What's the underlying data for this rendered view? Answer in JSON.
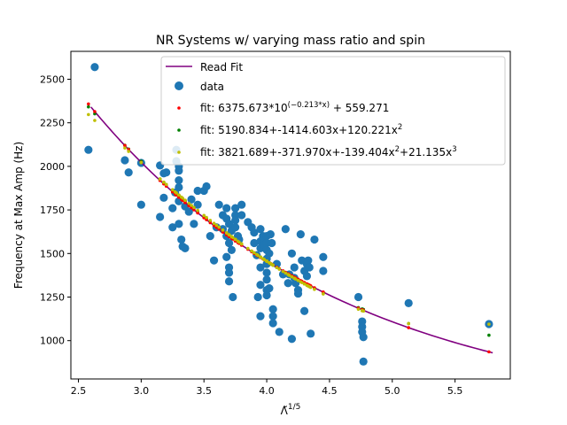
{
  "chart_data": {
    "type": "scatter",
    "title": "NR Systems w/ varying mass ratio and spin",
    "xlabel": "Λ̃",
    "xlabel_sup": "1/5",
    "ylabel": "Frequency at Max Amp (Hz)",
    "xlim": [
      2.44,
      5.94
    ],
    "ylim": [
      780,
      2660
    ],
    "xticks": [
      2.5,
      3.0,
      3.5,
      4.0,
      4.5,
      5.0,
      5.5
    ],
    "xtick_labels": [
      "2.5",
      "3.0",
      "3.5",
      "4.0",
      "4.5",
      "5.0",
      "5.5"
    ],
    "yticks": [
      1000,
      1250,
      1500,
      1750,
      2000,
      2250,
      2500
    ],
    "ytick_labels": [
      "1000",
      "1250",
      "1500",
      "1750",
      "2000",
      "2250",
      "2500"
    ],
    "grid": false,
    "legend_position": "top-right",
    "colors": {
      "read_fit": "#800080",
      "data": "#1f77b4",
      "fit_exp": "#ff0000",
      "fit_quad": "#008000",
      "fit_cubic": "#bfbf00"
    },
    "series": [
      {
        "key": "read_fit",
        "name": "Read Fit",
        "kind": "line",
        "x_range": [
          2.6,
          5.8
        ]
      },
      {
        "key": "data",
        "name": "data",
        "kind": "scatter",
        "points": [
          [
            2.63,
            2570
          ],
          [
            2.58,
            2095
          ],
          [
            2.87,
            2035
          ],
          [
            2.9,
            1965
          ],
          [
            3.0,
            2020
          ],
          [
            3.0,
            1780
          ],
          [
            3.15,
            2005
          ],
          [
            3.15,
            1710
          ],
          [
            3.18,
            1960
          ],
          [
            3.18,
            1820
          ],
          [
            3.2,
            1965
          ],
          [
            3.25,
            1760
          ],
          [
            3.25,
            1650
          ],
          [
            3.27,
            1850
          ],
          [
            3.28,
            2095
          ],
          [
            3.28,
            2030
          ],
          [
            3.3,
            2000
          ],
          [
            3.3,
            1975
          ],
          [
            3.3,
            1920
          ],
          [
            3.3,
            1880
          ],
          [
            3.3,
            1800
          ],
          [
            3.3,
            1670
          ],
          [
            3.32,
            1580
          ],
          [
            3.33,
            1540
          ],
          [
            3.35,
            1530
          ],
          [
            3.35,
            1770
          ],
          [
            3.38,
            1740
          ],
          [
            3.4,
            1810
          ],
          [
            3.42,
            1670
          ],
          [
            3.45,
            1860
          ],
          [
            3.45,
            1780
          ],
          [
            3.5,
            1860
          ],
          [
            3.52,
            1885
          ],
          [
            3.55,
            1600
          ],
          [
            3.58,
            1460
          ],
          [
            3.6,
            1650
          ],
          [
            3.62,
            1780
          ],
          [
            3.65,
            1720
          ],
          [
            3.65,
            1640
          ],
          [
            3.68,
            1760
          ],
          [
            3.68,
            1700
          ],
          [
            3.68,
            1600
          ],
          [
            3.68,
            1480
          ],
          [
            3.7,
            1670
          ],
          [
            3.7,
            1560
          ],
          [
            3.7,
            1420
          ],
          [
            3.7,
            1390
          ],
          [
            3.7,
            1340
          ],
          [
            3.72,
            1630
          ],
          [
            3.72,
            1520
          ],
          [
            3.73,
            1250
          ],
          [
            3.75,
            1760
          ],
          [
            3.75,
            1720
          ],
          [
            3.75,
            1690
          ],
          [
            3.75,
            1650
          ],
          [
            3.77,
            1600
          ],
          [
            3.78,
            1580
          ],
          [
            3.8,
            1780
          ],
          [
            3.8,
            1720
          ],
          [
            3.85,
            1680
          ],
          [
            3.88,
            1650
          ],
          [
            3.9,
            1620
          ],
          [
            3.9,
            1560
          ],
          [
            3.92,
            1490
          ],
          [
            3.93,
            1250
          ],
          [
            3.95,
            1640
          ],
          [
            3.95,
            1570
          ],
          [
            3.95,
            1530
          ],
          [
            3.95,
            1420
          ],
          [
            3.95,
            1320
          ],
          [
            3.95,
            1140
          ],
          [
            3.97,
            1600
          ],
          [
            3.98,
            1580
          ],
          [
            3.98,
            1550
          ],
          [
            4.0,
            1600
          ],
          [
            4.0,
            1560
          ],
          [
            4.0,
            1520
          ],
          [
            4.0,
            1470
          ],
          [
            4.0,
            1440
          ],
          [
            4.0,
            1390
          ],
          [
            4.0,
            1350
          ],
          [
            4.0,
            1290
          ],
          [
            4.0,
            1260
          ],
          [
            4.02,
            1500
          ],
          [
            4.02,
            1300
          ],
          [
            4.03,
            1610
          ],
          [
            4.04,
            1560
          ],
          [
            4.05,
            1140
          ],
          [
            4.05,
            1100
          ],
          [
            4.05,
            1180
          ],
          [
            4.08,
            1440
          ],
          [
            4.1,
            1050
          ],
          [
            4.13,
            1380
          ],
          [
            4.15,
            1640
          ],
          [
            4.17,
            1330
          ],
          [
            4.18,
            1380
          ],
          [
            4.2,
            1500
          ],
          [
            4.2,
            1010
          ],
          [
            4.22,
            1420
          ],
          [
            4.22,
            1360
          ],
          [
            4.23,
            1330
          ],
          [
            4.25,
            1290
          ],
          [
            4.25,
            1270
          ],
          [
            4.27,
            1610
          ],
          [
            4.28,
            1460
          ],
          [
            4.3,
            1400
          ],
          [
            4.3,
            1170
          ],
          [
            4.32,
            1440
          ],
          [
            4.32,
            1370
          ],
          [
            4.33,
            1460
          ],
          [
            4.34,
            1420
          ],
          [
            4.35,
            1040
          ],
          [
            4.38,
            1580
          ],
          [
            4.45,
            1400
          ],
          [
            4.45,
            1480
          ],
          [
            4.73,
            1250
          ],
          [
            4.76,
            1110
          ],
          [
            4.76,
            1080
          ],
          [
            4.76,
            1050
          ],
          [
            4.77,
            1020
          ],
          [
            4.77,
            880
          ],
          [
            5.13,
            1215
          ],
          [
            5.77,
            1095
          ]
        ]
      },
      {
        "key": "fit_exp",
        "name": "fit: 6375.673*10",
        "name_sup": "(−0.213*x)",
        "name_tail": " + 559.271",
        "kind": "fitpoints",
        "coef": [
          6375.673,
          -0.213,
          559.271
        ]
      },
      {
        "key": "fit_quad",
        "name": "fit: 5190.834+-1414.603x+120.221x",
        "name_sup": "2",
        "name_tail": "",
        "kind": "fitpoints",
        "coef": [
          5190.834,
          -1414.603,
          120.221
        ]
      },
      {
        "key": "fit_cubic",
        "name": "fit: 3821.689+-371.970x+-139.404x",
        "name_sup": "2",
        "name_tail": "+21.135x",
        "name_sup2": "3",
        "kind": "fitpoints",
        "coef": [
          3821.689,
          -371.97,
          -139.404,
          21.135
        ]
      }
    ]
  }
}
